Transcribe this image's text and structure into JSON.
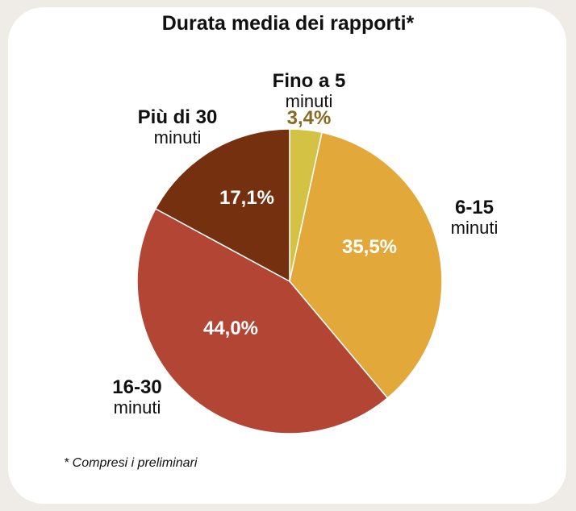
{
  "title": "Durata media dei rapporti*",
  "footnote": "* Compresi i preliminari",
  "chart_data": {
    "type": "pie",
    "title": "Durata media dei rapporti*",
    "slices": [
      {
        "label_line1": "Fino a 5",
        "label_line2": "minuti",
        "value": 3.4,
        "value_label": "3,4%",
        "color": "#d4c244"
      },
      {
        "label_line1": "6-15",
        "label_line2": "minuti",
        "value": 35.5,
        "value_label": "35,5%",
        "color": "#e3a83a"
      },
      {
        "label_line1": "16-30",
        "label_line2": "minuti",
        "value": 44.0,
        "value_label": "44,0%",
        "color": "#b34535"
      },
      {
        "label_line1": "Più di 30",
        "label_line2": "minuti",
        "value": 17.1,
        "value_label": "17,1%",
        "color": "#75310f"
      }
    ],
    "start_angle": "12 o'clock",
    "direction": "clockwise",
    "legend": "none",
    "small_slice_label_color": "#8a6a22"
  }
}
